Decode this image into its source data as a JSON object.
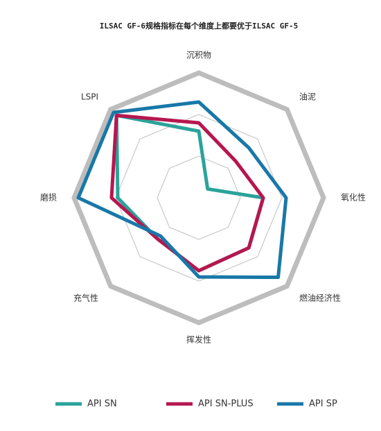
{
  "chart_data": {
    "type": "radar",
    "title": "ILSAC GF-6规格指标在每个维度上都要优于ILSAC GF-5",
    "categories": [
      "沉积物",
      "油泥",
      "氧化性",
      "燃油经济性",
      "挥发性",
      "充气性",
      "磨损",
      "LSPI"
    ],
    "rlim": [
      0,
      3
    ],
    "rticks": [
      1,
      2,
      3
    ],
    "series": [
      {
        "name": "API SN",
        "color": "#2aa39a",
        "values": [
          1.6,
          0.3,
          1.55,
          1.7,
          1.75,
          1.4,
          1.95,
          2.8
        ]
      },
      {
        "name": "API SN-PLUS",
        "color": "#b5174f",
        "values": [
          1.8,
          1.25,
          1.55,
          1.7,
          1.75,
          1.4,
          2.1,
          2.8
        ]
      },
      {
        "name": "API SP",
        "color": "#1878a8",
        "values": [
          2.3,
          1.7,
          2.1,
          2.7,
          1.9,
          1.3,
          2.9,
          2.9
        ]
      }
    ]
  }
}
